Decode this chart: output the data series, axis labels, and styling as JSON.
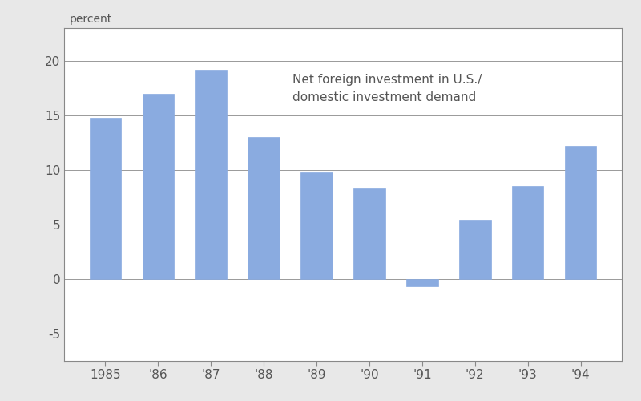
{
  "years": [
    "1985",
    "'86",
    "'87",
    "'88",
    "'89",
    "'90",
    "'91",
    "'92",
    "'93",
    "'94"
  ],
  "values": [
    14.8,
    17.0,
    19.2,
    13.0,
    9.8,
    8.3,
    -0.7,
    5.4,
    8.5,
    12.2
  ],
  "bar_color": "#8aabe0",
  "ylabel_text": "percent",
  "annotation_line1": "Net foreign investment in U.S./",
  "annotation_line2": "domestic investment demand",
  "ylim": [
    -7.5,
    23
  ],
  "yticks": [
    -5,
    0,
    5,
    10,
    15,
    20
  ],
  "yticklabels": [
    "-5",
    "0",
    "5",
    "10",
    "15",
    "20"
  ],
  "background_color": "#ffffff",
  "fig_background": "#e8e8e8",
  "spine_color": "#888888",
  "grid_color": "#999999",
  "text_color": "#555555",
  "bar_width": 0.6
}
